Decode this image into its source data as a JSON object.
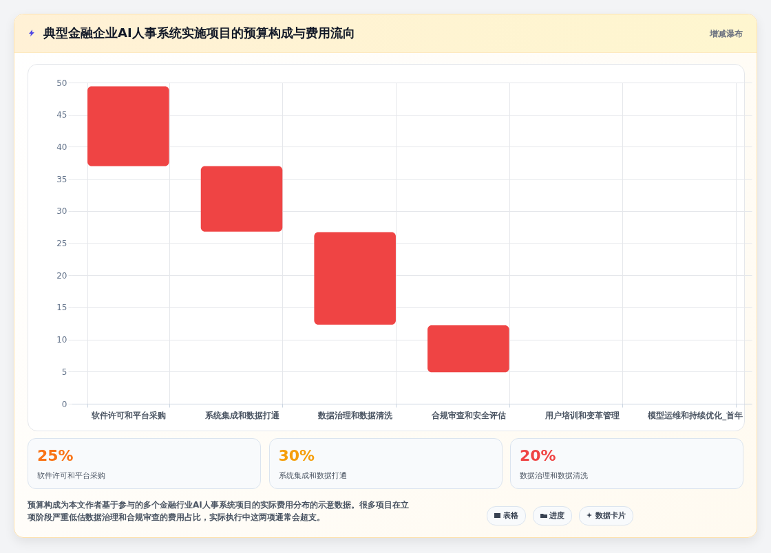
{
  "chart_data": [
    {
      "type": "bar",
      "title": "典型金融企业AI人事系统实施项目的预算构成与费用流向",
      "subtitle": "增减瀑布",
      "categories": [
        "软件许可和平台采购",
        "系统集成和数据打通",
        "数据治理和数据清洗",
        "合规审查和安全评估",
        "用户培训和变革管理",
        "模型运维和持续优化_首年"
      ],
      "values": [
        12.4,
        10.2,
        14.4,
        7.3,
        null,
        null
      ],
      "base": [
        37,
        26.8,
        12.3,
        4.9,
        null,
        null
      ],
      "color": "#ef4444",
      "ylim": [
        0,
        50
      ],
      "yticks": [
        0,
        5,
        10,
        15,
        20,
        25,
        30,
        35,
        40,
        45,
        50
      ],
      "grid": true,
      "annotations": [
        "预算构成为本文作者基于参与的多个金融行业AI人事系统项目的实际费用分布的示意数据。很多项目在立项阶段严重低估数据治理和合规审查的费用占比，实际执行中这两项通常会超支。",
        "表格",
        "进度",
        "数据卡片"
      ]
    },
    {
      "type": "other",
      "annotations": [
        "25%",
        "软件许可和平台采购",
        "30%",
        "系统集成和数据打通",
        "20%",
        "数据治理和数据清洗"
      ]
    }
  ]
}
